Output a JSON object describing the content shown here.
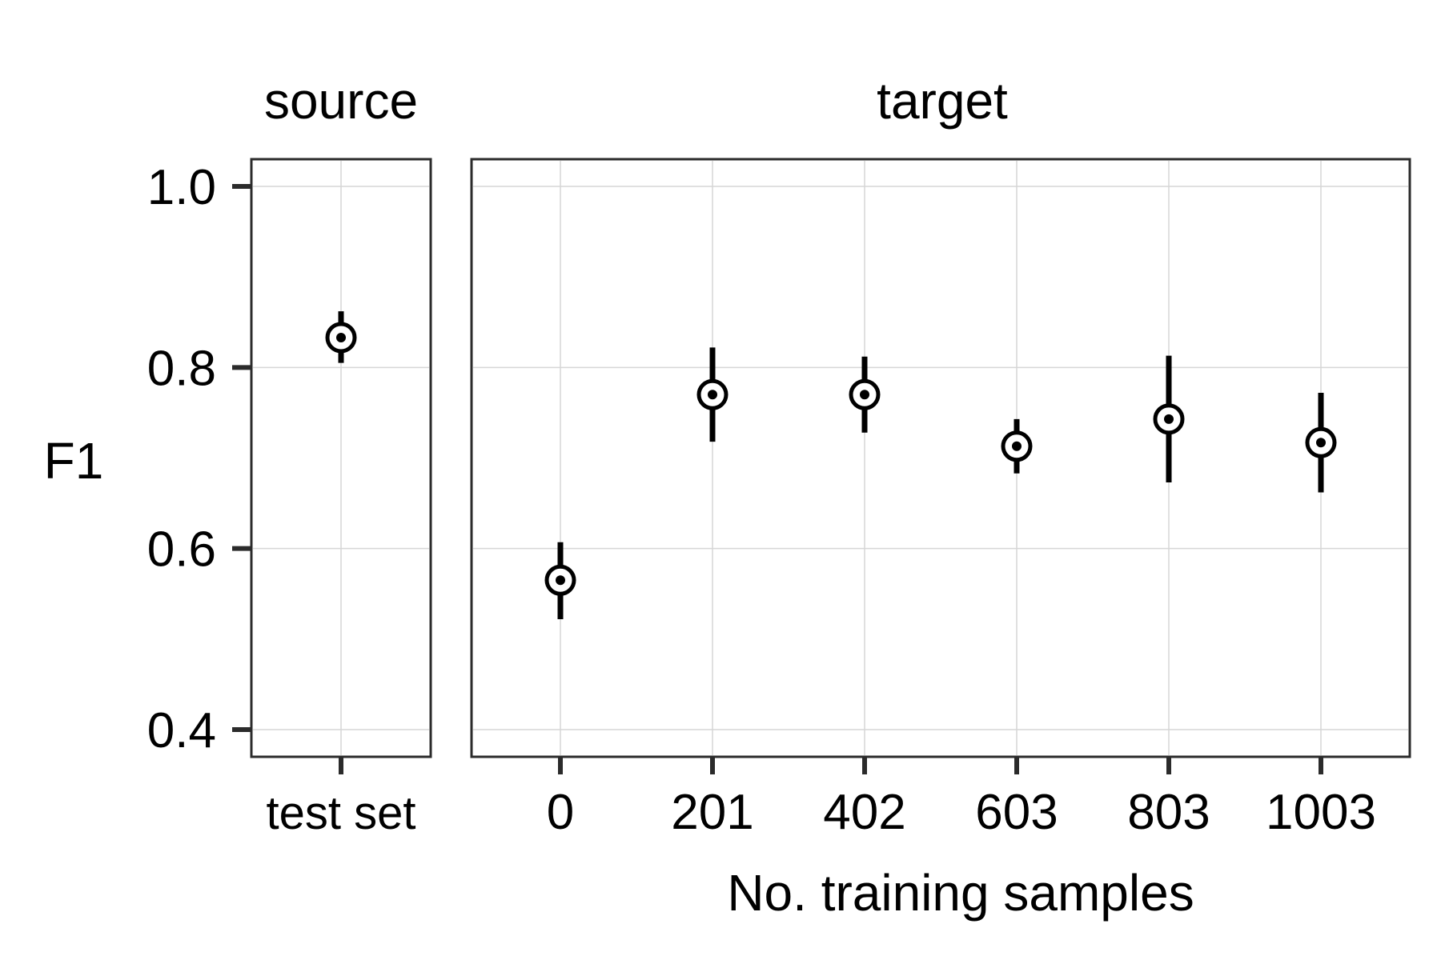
{
  "chart_data": [
    {
      "type": "scatter",
      "panel": "source",
      "title": "source",
      "ylabel": "F1",
      "xlabel": "",
      "ylim": [
        0.37,
        1.03
      ],
      "yticks": [
        "0.4",
        "0.6",
        "0.8",
        "1.0"
      ],
      "categories": [
        "test set"
      ],
      "points": [
        {
          "x": "test set",
          "y": 0.833,
          "lower": 0.805,
          "upper": 0.862
        }
      ],
      "grid": true
    },
    {
      "type": "scatter",
      "panel": "target",
      "title": "target",
      "xlabel": "No. training samples",
      "ylim": [
        0.37,
        1.03
      ],
      "categories": [
        "0",
        "201",
        "402",
        "603",
        "803",
        "1003"
      ],
      "points": [
        {
          "x": "0",
          "y": 0.565,
          "lower": 0.522,
          "upper": 0.607
        },
        {
          "x": "201",
          "y": 0.77,
          "lower": 0.718,
          "upper": 0.822
        },
        {
          "x": "402",
          "y": 0.77,
          "lower": 0.728,
          "upper": 0.812
        },
        {
          "x": "603",
          "y": 0.713,
          "lower": 0.683,
          "upper": 0.743
        },
        {
          "x": "803",
          "y": 0.743,
          "lower": 0.673,
          "upper": 0.813
        },
        {
          "x": "1003",
          "y": 0.717,
          "lower": 0.662,
          "upper": 0.772
        }
      ],
      "grid": true
    }
  ]
}
